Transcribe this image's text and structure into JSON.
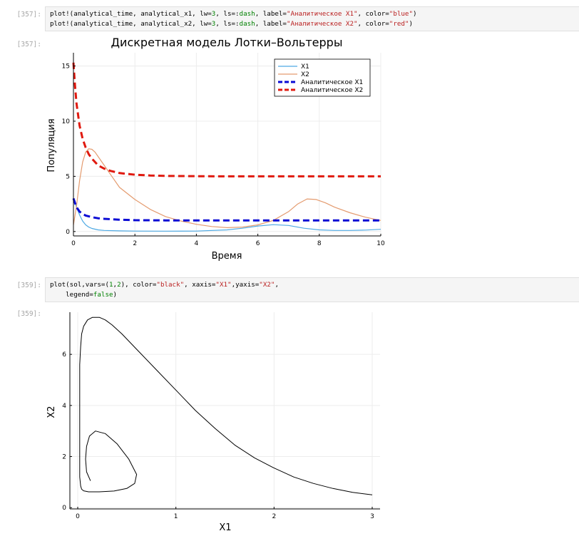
{
  "cells": [
    {
      "in_prompt": "[357]:",
      "out_prompt": "[357]:",
      "code_lines": [
        [
          [
            "t",
            "plot!(analytical_time, analytical_x1, lw="
          ],
          [
            "n",
            "3"
          ],
          [
            "t",
            ", ls=:"
          ],
          [
            "n",
            "dash"
          ],
          [
            "t",
            ", label="
          ],
          [
            "s",
            "\"Аналитическое X1\""
          ],
          [
            "t",
            ", color="
          ],
          [
            "s",
            "\"blue\""
          ],
          [
            "t",
            ")"
          ]
        ],
        [
          [
            "t",
            "plot!(analytical_time, analytical_x2, lw="
          ],
          [
            "n",
            "3"
          ],
          [
            "t",
            ", ls=:"
          ],
          [
            "n",
            "dash"
          ],
          [
            "t",
            ", label="
          ],
          [
            "s",
            "\"Аналитическое X2\""
          ],
          [
            "t",
            ", color="
          ],
          [
            "s",
            "\"red\""
          ],
          [
            "t",
            ")"
          ]
        ]
      ]
    },
    {
      "in_prompt": "[359]:",
      "out_prompt": "[359]:",
      "code_lines": [
        [
          [
            "t",
            "plot(sol,vars=("
          ],
          [
            "n",
            "1"
          ],
          [
            "t",
            ","
          ],
          [
            "n",
            "2"
          ],
          [
            "t",
            "), color="
          ],
          [
            "s",
            "\"black\""
          ],
          [
            "t",
            ", xaxis="
          ],
          [
            "s",
            "\"X1\""
          ],
          [
            "t",
            ",yaxis="
          ],
          [
            "s",
            "\"X2\""
          ],
          [
            "t",
            ","
          ]
        ],
        [
          [
            "t",
            "    legend="
          ],
          [
            "n",
            "false"
          ],
          [
            "t",
            ")"
          ]
        ]
      ]
    }
  ],
  "chart_data": [
    {
      "type": "line",
      "title": "Дискретная модель Лотки–Вольтерры",
      "xlabel": "Время",
      "ylabel": "Популяция",
      "xlim": [
        0,
        10
      ],
      "ylim": [
        -0.4,
        16.2
      ],
      "xticks": [
        0,
        2,
        4,
        6,
        8,
        10
      ],
      "yticks": [
        0,
        5,
        10,
        15
      ],
      "grid": true,
      "legend_position": "top-right",
      "series": [
        {
          "name": "X1",
          "color": "#4ea9e3",
          "width": 1.2,
          "dash": false,
          "x": [
            0,
            0.1,
            0.2,
            0.3,
            0.4,
            0.5,
            0.6,
            0.8,
            1,
            1.5,
            2,
            3,
            4,
            5,
            5.5,
            6,
            6.5,
            7,
            7.5,
            8,
            8.5,
            9,
            9.5,
            10
          ],
          "y": [
            3,
            2.2,
            1.5,
            0.95,
            0.6,
            0.4,
            0.28,
            0.15,
            0.1,
            0.06,
            0.04,
            0.03,
            0.04,
            0.15,
            0.3,
            0.5,
            0.62,
            0.55,
            0.3,
            0.15,
            0.1,
            0.1,
            0.13,
            0.2
          ]
        },
        {
          "name": "X2",
          "color": "#e49b6f",
          "width": 1.2,
          "dash": false,
          "x": [
            0,
            0.1,
            0.2,
            0.3,
            0.4,
            0.5,
            0.6,
            0.7,
            0.8,
            1,
            1.2,
            1.5,
            2,
            2.5,
            3,
            3.5,
            4,
            4.5,
            5,
            5.5,
            6,
            6.5,
            7,
            7.3,
            7.6,
            7.9,
            8.2,
            8.5,
            9,
            9.5,
            10
          ],
          "y": [
            0.6,
            2.3,
            4.6,
            6.3,
            7.2,
            7.5,
            7.45,
            7.2,
            6.8,
            6.0,
            5.2,
            4.0,
            2.9,
            2.0,
            1.35,
            0.95,
            0.65,
            0.45,
            0.35,
            0.4,
            0.6,
            1.0,
            1.8,
            2.5,
            2.95,
            2.9,
            2.6,
            2.2,
            1.7,
            1.3,
            1.0
          ]
        },
        {
          "name": "Аналитическое X1",
          "color": "#0a0ad4",
          "width": 3,
          "dash": true,
          "x": [
            0,
            0.1,
            0.2,
            0.3,
            0.4,
            0.6,
            0.8,
            1,
            1.5,
            2,
            3,
            4,
            5,
            6,
            7,
            8,
            9,
            10
          ],
          "y": [
            3,
            2.2,
            1.8,
            1.6,
            1.45,
            1.3,
            1.2,
            1.15,
            1.07,
            1.03,
            1.01,
            1.0,
            1.0,
            1.0,
            1.0,
            1.0,
            1.0,
            1.0
          ]
        },
        {
          "name": "Аналитическое X2",
          "color": "#e0190e",
          "width": 3,
          "dash": true,
          "x": [
            0,
            0.05,
            0.1,
            0.2,
            0.3,
            0.4,
            0.5,
            0.6,
            0.8,
            1,
            1.2,
            1.5,
            2,
            2.5,
            3,
            4,
            5,
            6,
            7,
            8,
            9,
            10
          ],
          "y": [
            15.3,
            13.2,
            11.6,
            9.6,
            8.4,
            7.6,
            7.0,
            6.6,
            6.0,
            5.7,
            5.5,
            5.3,
            5.15,
            5.08,
            5.04,
            5.01,
            5.0,
            5.0,
            5.0,
            5.0,
            5.0,
            5.0
          ]
        }
      ]
    },
    {
      "type": "line",
      "title": "",
      "xlabel": "X1",
      "ylabel": "X2",
      "xlim": [
        -0.08,
        3.08
      ],
      "ylim": [
        -0.05,
        7.65
      ],
      "xticks": [
        0,
        1,
        2,
        3
      ],
      "yticks": [
        0,
        2,
        4,
        6
      ],
      "grid": true,
      "legend": false,
      "series": [
        {
          "color": "#000000",
          "width": 1.0,
          "dash": false,
          "x": [
            0.13,
            0.09,
            0.08,
            0.09,
            0.12,
            0.18,
            0.28,
            0.4,
            0.52,
            0.6,
            0.58,
            0.5,
            0.37,
            0.22,
            0.11,
            0.06,
            0.04,
            0.03,
            0.02,
            0.02,
            0.02,
            0.02,
            0.02,
            0.02,
            0.03,
            0.04,
            0.06,
            0.1,
            0.15,
            0.22,
            0.28,
            0.35,
            0.45,
            0.6,
            0.8,
            1.0,
            1.2,
            1.4,
            1.6,
            1.8,
            2.0,
            2.2,
            2.4,
            2.6,
            2.8,
            3.0
          ],
          "y": [
            1.05,
            1.4,
            1.9,
            2.4,
            2.8,
            3.0,
            2.9,
            2.5,
            1.9,
            1.3,
            0.95,
            0.75,
            0.65,
            0.62,
            0.62,
            0.66,
            0.72,
            0.85,
            1.2,
            2.0,
            3.0,
            4.0,
            5.0,
            5.6,
            6.3,
            6.8,
            7.1,
            7.35,
            7.45,
            7.45,
            7.35,
            7.15,
            6.8,
            6.2,
            5.4,
            4.6,
            3.8,
            3.1,
            2.45,
            1.95,
            1.55,
            1.2,
            0.95,
            0.75,
            0.6,
            0.5
          ]
        }
      ]
    }
  ]
}
